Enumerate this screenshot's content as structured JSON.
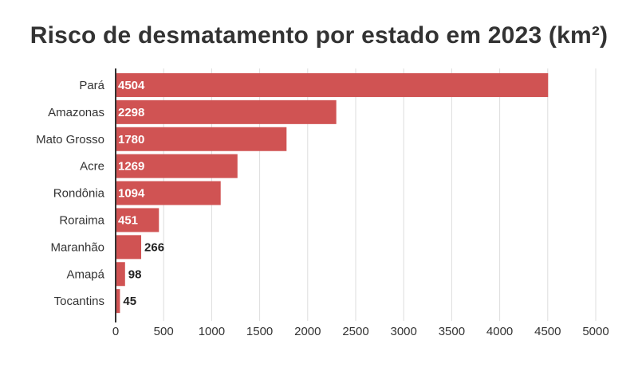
{
  "chart_data": {
    "type": "bar",
    "orientation": "horizontal",
    "title": "Risco de desmatamento por estado em 2023 (km²)",
    "xlabel": "",
    "ylabel": "",
    "categories": [
      "Pará",
      "Amazonas",
      "Mato Grosso",
      "Acre",
      "Rondônia",
      "Roraima",
      "Maranhão",
      "Amapá",
      "Tocantins"
    ],
    "values": [
      4504,
      2298,
      1780,
      1269,
      1094,
      451,
      266,
      98,
      45
    ],
    "value_labels": [
      "4504",
      "2298",
      "1780",
      "1269",
      "1094",
      "451",
      "266",
      "98",
      "45"
    ],
    "xlim": [
      0,
      5000
    ],
    "xticks": [
      0,
      500,
      1000,
      1500,
      2000,
      2500,
      3000,
      3500,
      4000,
      4500,
      5000
    ],
    "xtick_labels": [
      "0",
      "500",
      "1000",
      "1500",
      "2000",
      "2500",
      "3000",
      "3500",
      "4000",
      "4500",
      "5000"
    ],
    "grid": true,
    "legend": "none",
    "bar_color": "#d05353",
    "grid_color": "#dddddd",
    "axis_color": "#333333"
  }
}
